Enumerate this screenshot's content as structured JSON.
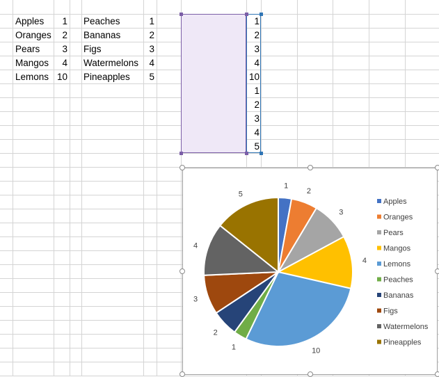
{
  "sheet": {
    "list_a": [
      {
        "name": "Apples",
        "value": "1"
      },
      {
        "name": "Oranges",
        "value": "2"
      },
      {
        "name": "Pears",
        "value": "3"
      },
      {
        "name": "Mangos",
        "value": "4"
      },
      {
        "name": "Lemons",
        "value": "10"
      }
    ],
    "list_b": [
      {
        "name": "Peaches",
        "value": "1"
      },
      {
        "name": "Bananas",
        "value": "2"
      },
      {
        "name": "Figs",
        "value": "3"
      },
      {
        "name": "Watermelons",
        "value": "4"
      },
      {
        "name": "Pineapples",
        "value": "5"
      }
    ],
    "combined": [
      {
        "name": "Apples",
        "value": "1"
      },
      {
        "name": "Oranges",
        "value": "2"
      },
      {
        "name": "Pears",
        "value": "3"
      },
      {
        "name": "Mangos",
        "value": "4"
      },
      {
        "name": "Lemons",
        "value": "10"
      },
      {
        "name": "Peaches",
        "value": "1"
      },
      {
        "name": "Bananas",
        "value": "2"
      },
      {
        "name": "Figs",
        "value": "3"
      },
      {
        "name": "Watermelons",
        "value": "4"
      },
      {
        "name": "Pineapples",
        "value": "5"
      }
    ],
    "colors": {
      "gridline": "#d4d4d4",
      "selection_names_fill": "#efe8f7",
      "selection_names_border": "#7b5ea7",
      "selection_values_border": "#2f75b5"
    }
  },
  "chart_data": {
    "type": "pie",
    "categories": [
      "Apples",
      "Oranges",
      "Pears",
      "Mangos",
      "Lemons",
      "Peaches",
      "Bananas",
      "Figs",
      "Watermelons",
      "Pineapples"
    ],
    "values": [
      1,
      2,
      3,
      4,
      10,
      1,
      2,
      3,
      4,
      5
    ],
    "colors": [
      "#4472c4",
      "#ed7d31",
      "#a5a5a5",
      "#ffc000",
      "#5b9bd5",
      "#70ad47",
      "#264478",
      "#9e480e",
      "#636363",
      "#997300"
    ],
    "data_labels": [
      "1",
      "2",
      "3",
      "4",
      "10",
      "1",
      "2",
      "3",
      "4",
      "5"
    ],
    "title": "",
    "legend_position": "right"
  }
}
